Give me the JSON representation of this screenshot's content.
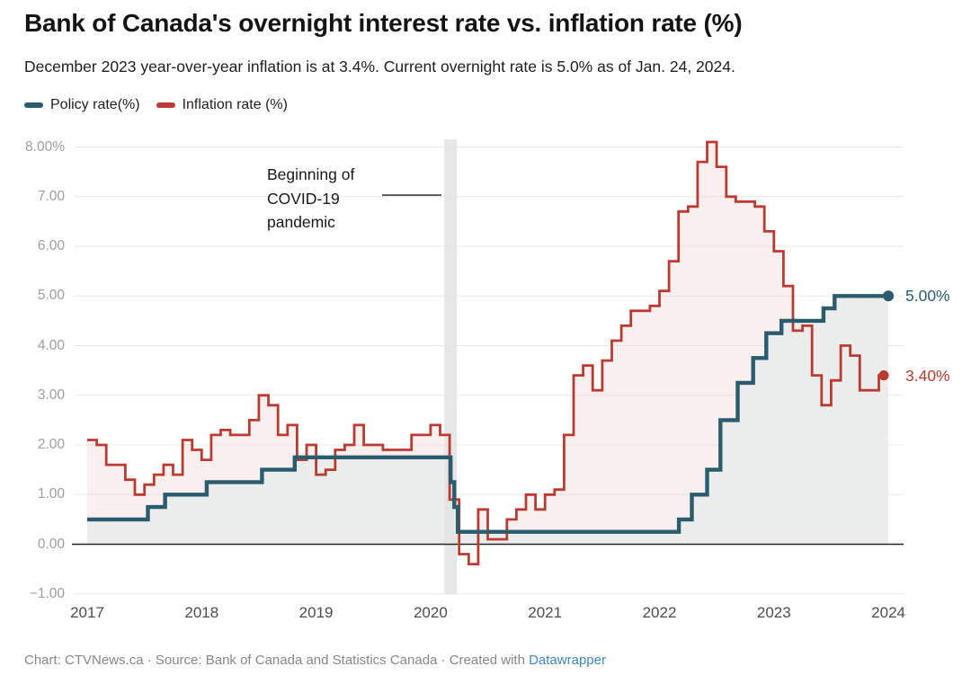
{
  "header": {
    "title": "Bank of Canada's overnight interest rate vs. inflation rate (%)",
    "subtitle": "December 2023 year-over-year inflation is at 3.4%. Current overnight rate is 5.0% as of Jan. 24, 2024."
  },
  "legend": {
    "items": [
      {
        "label": "Policy rate(%)",
        "color": "#2b5c6e"
      },
      {
        "label": "Inflation rate (%)",
        "color": "#b93b31"
      }
    ]
  },
  "chart_data": {
    "type": "line",
    "subtype": "step",
    "title": "Bank of Canada's overnight interest rate vs. inflation rate (%)",
    "x_axis": {
      "ticks": [
        "2017",
        "2018",
        "2019",
        "2020",
        "2021",
        "2022",
        "2023",
        "2024"
      ],
      "range": [
        2016.89,
        2024.13
      ],
      "grid": false
    },
    "y_axis": {
      "ticks": [
        {
          "label": "8.00%",
          "value": 8
        },
        {
          "label": "7.00",
          "value": 7
        },
        {
          "label": "6.00",
          "value": 6
        },
        {
          "label": "5.00",
          "value": 5
        },
        {
          "label": "4.00",
          "value": 4
        },
        {
          "label": "3.00",
          "value": 3
        },
        {
          "label": "2.00",
          "value": 2
        },
        {
          "label": "1.00",
          "value": 1
        },
        {
          "label": "0.00",
          "value": 0
        },
        {
          "label": "−1.00",
          "value": -1
        }
      ],
      "range": [
        -1.12,
        8.16
      ],
      "grid": true,
      "zero_baseline": true
    },
    "series": [
      {
        "name": "Policy rate(%)",
        "color": "#2b5c6e",
        "line_width": 4.4,
        "area_fill": "#e9ebec",
        "area_opacity": 0.92,
        "end_label": "5.00%",
        "end_dot": true,
        "points_effective_dates": [
          [
            "2017-01",
            0.5
          ],
          [
            "2017-07-12",
            0.75
          ],
          [
            "2017-09-06",
            1.0
          ],
          [
            "2018-01-17",
            1.25
          ],
          [
            "2018-07-11",
            1.5
          ],
          [
            "2018-10-24",
            1.75
          ],
          [
            "2020-03-04",
            1.25
          ],
          [
            "2020-03-16",
            0.75
          ],
          [
            "2020-03-27",
            0.25
          ],
          [
            "2022-03-02",
            0.5
          ],
          [
            "2022-04-13",
            1.0
          ],
          [
            "2022-06-01",
            1.5
          ],
          [
            "2022-07-13",
            2.5
          ],
          [
            "2022-09-07",
            3.25
          ],
          [
            "2022-10-26",
            3.75
          ],
          [
            "2022-12-07",
            4.25
          ],
          [
            "2023-01-25",
            4.5
          ],
          [
            "2023-06-07",
            4.75
          ],
          [
            "2023-07-12",
            5.0
          ],
          [
            "2024-01",
            5.0
          ]
        ]
      },
      {
        "name": "Inflation rate (%)",
        "color": "#b93b31",
        "line_width": 2.8,
        "area_fill": "rgba(238,214,214,0.38)",
        "end_label": "3.40%",
        "end_dot": true,
        "monthly": {
          "start": "2017-01",
          "values": [
            2.1,
            2.0,
            1.6,
            1.6,
            1.3,
            1.0,
            1.2,
            1.4,
            1.6,
            1.4,
            2.1,
            1.9,
            1.7,
            2.2,
            2.3,
            2.2,
            2.2,
            2.5,
            3.0,
            2.8,
            2.2,
            2.4,
            1.7,
            2.0,
            1.4,
            1.5,
            1.9,
            2.0,
            2.4,
            2.0,
            2.0,
            1.9,
            1.9,
            1.9,
            2.2,
            2.2,
            2.4,
            2.2,
            0.9,
            -0.2,
            -0.4,
            0.7,
            0.1,
            0.1,
            0.5,
            0.7,
            1.0,
            0.7,
            1.0,
            1.1,
            2.2,
            3.4,
            3.6,
            3.1,
            3.7,
            4.1,
            4.4,
            4.7,
            4.7,
            4.8,
            5.1,
            5.7,
            6.7,
            6.8,
            7.7,
            8.1,
            7.6,
            7.0,
            6.9,
            6.9,
            6.8,
            6.3,
            5.9,
            5.2,
            4.3,
            4.4,
            3.4,
            2.8,
            3.3,
            4.0,
            3.8,
            3.1,
            3.1,
            3.4
          ]
        }
      }
    ],
    "covid_band": {
      "x_start": 2020.12,
      "x_end": 2020.23,
      "color": "#e4e4e4"
    },
    "annotation": {
      "text": "Beginning of COVID-19 pandemic",
      "connector_y_value": 7.03
    }
  },
  "footer": {
    "prefix": "Chart: CTVNews.ca · Source: Bank of Canada and Statistics Canada · Created with ",
    "link_label": "Datawrapper"
  }
}
